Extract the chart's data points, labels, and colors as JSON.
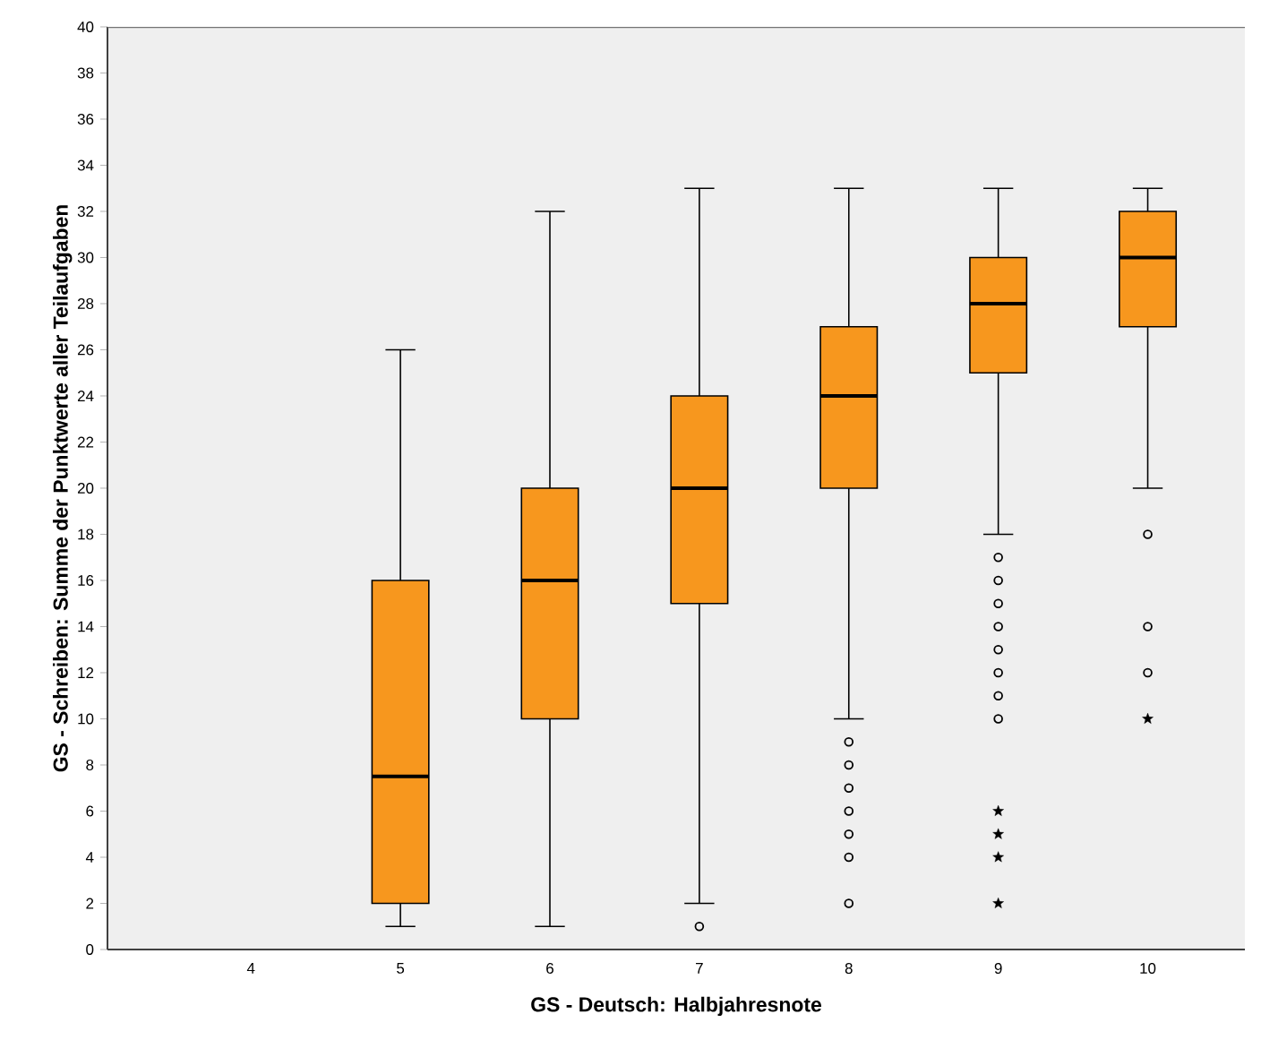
{
  "chart_data": {
    "type": "box",
    "xlabel": "GS - Deutsch: Halbjahresnote",
    "ylabel": "GS - Schreiben: Summe der Punktwerte aller Teilaufgaben",
    "categories": [
      "4",
      "5",
      "6",
      "7",
      "8",
      "9",
      "10"
    ],
    "ylim": [
      0,
      40
    ],
    "yticks": [
      0,
      2,
      4,
      6,
      8,
      10,
      12,
      14,
      16,
      18,
      20,
      22,
      24,
      26,
      28,
      30,
      32,
      34,
      36,
      38,
      40
    ],
    "grid": false,
    "series": [
      {
        "color": "#f7971e",
        "boxes": [
          null,
          {
            "low": 1,
            "q1": 2,
            "median": 7.5,
            "q3": 16,
            "high": 26
          },
          {
            "low": 1,
            "q1": 10,
            "median": 16,
            "q3": 20,
            "high": 32
          },
          {
            "low": 2,
            "q1": 15,
            "median": 20,
            "q3": 24,
            "high": 33,
            "outliers": [
              1
            ]
          },
          {
            "low": 10,
            "q1": 20,
            "median": 24,
            "q3": 27,
            "high": 33,
            "outliers": [
              2,
              4,
              5,
              6,
              7,
              8,
              9
            ]
          },
          {
            "low": 18,
            "q1": 25,
            "median": 28,
            "q3": 30,
            "high": 33,
            "outliers": [
              10,
              11,
              12,
              13,
              14,
              15,
              16,
              17
            ]
          },
          {
            "low": 20,
            "q1": 27,
            "median": 30,
            "q3": 32,
            "high": 33,
            "outliers": [
              12,
              14,
              18
            ]
          }
        ]
      },
      {
        "type": "scatter",
        "marker": "star",
        "color": "#000000",
        "x": [
          "9",
          "9",
          "9",
          "9",
          "10"
        ],
        "values": [
          2,
          4,
          5,
          6,
          10
        ]
      }
    ]
  }
}
